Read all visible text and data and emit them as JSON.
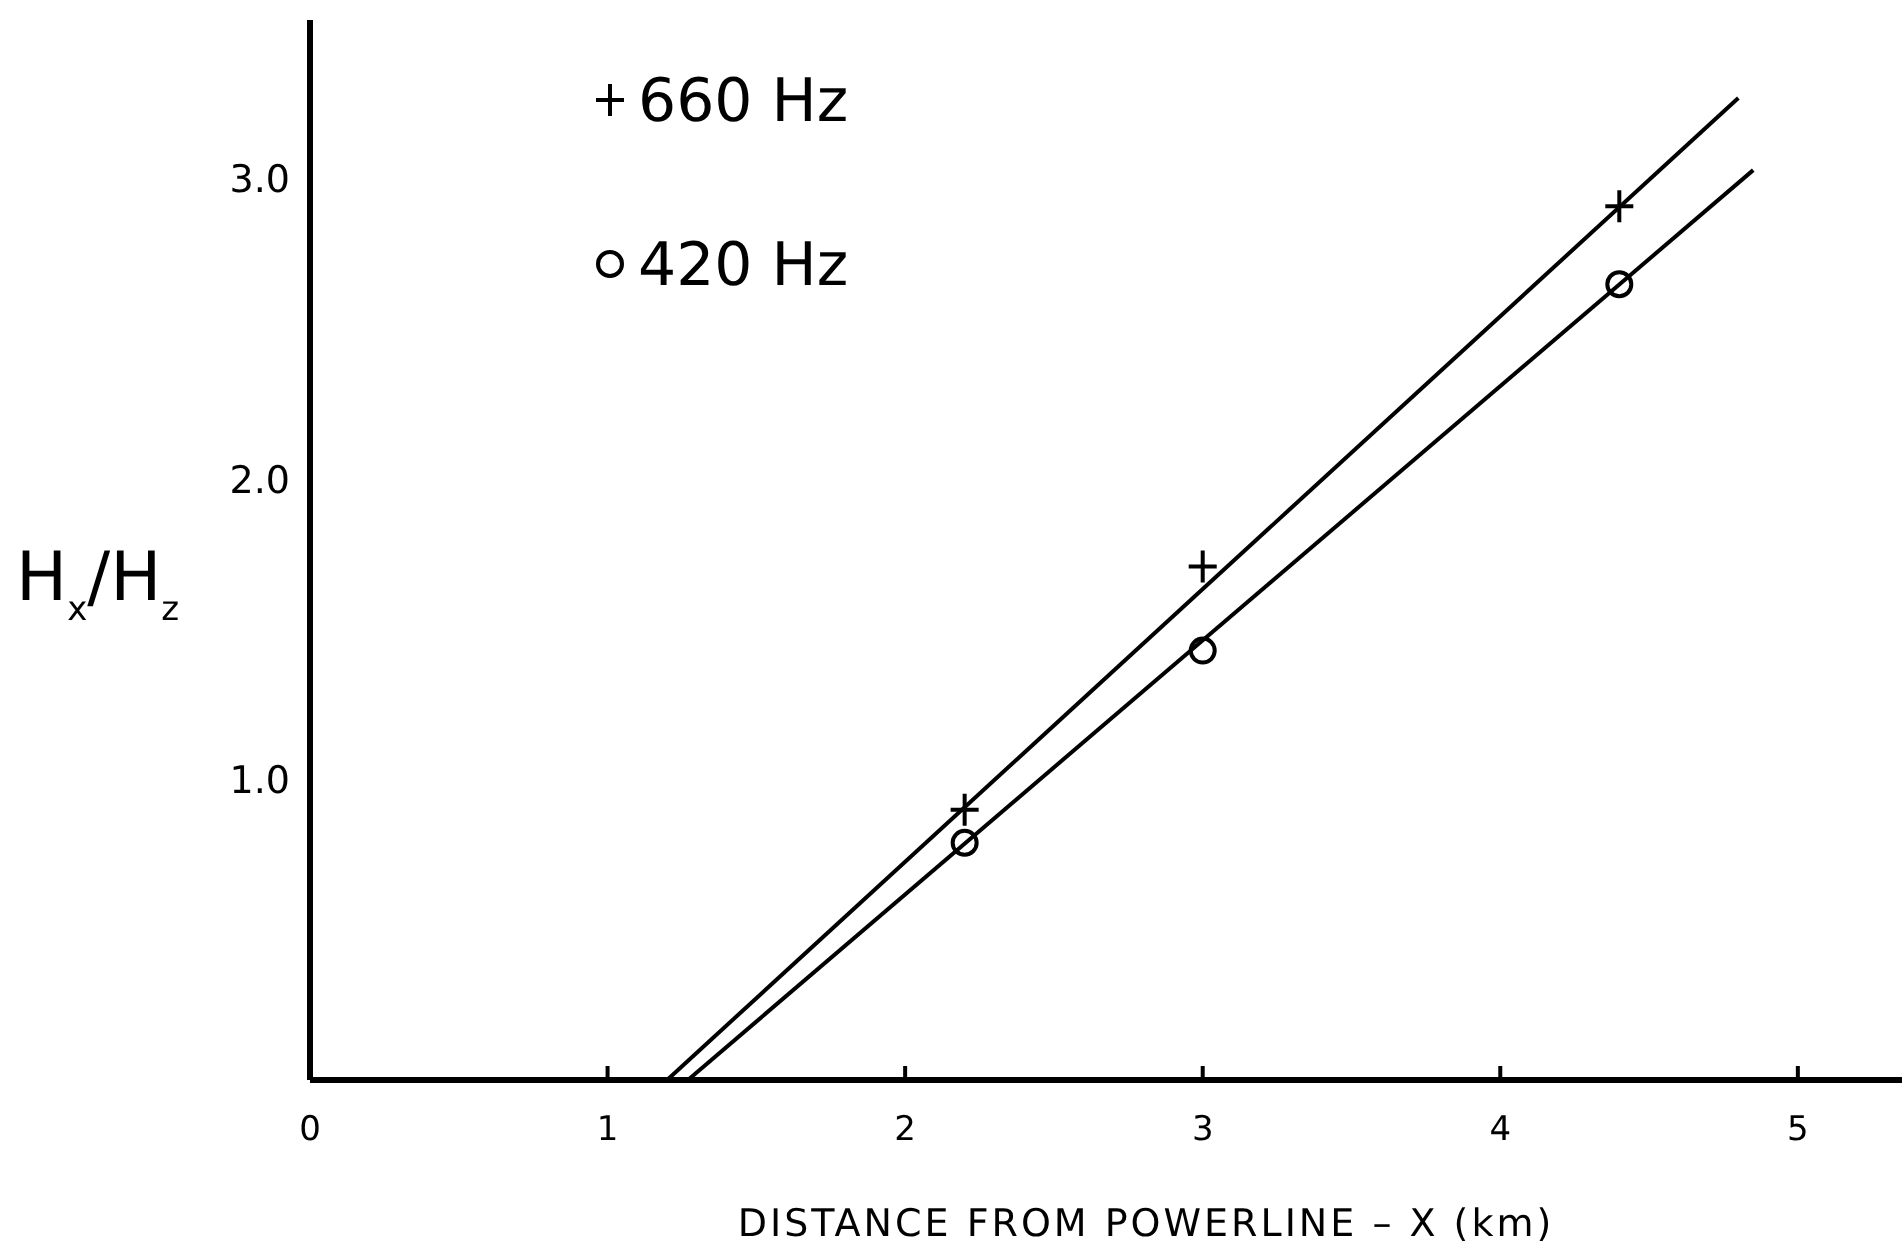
{
  "chart_data": {
    "type": "scatter",
    "xlabel": "DISTANCE  FROM  POWERLINE – X (km)",
    "ylabel": "H$_{x}$/H$_{z}$",
    "xlim": [
      0,
      5.35
    ],
    "ylim": [
      0,
      3.53
    ],
    "xticks": [
      0,
      1,
      2,
      3,
      4,
      5
    ],
    "yticks": [
      {
        "value": 1,
        "label": "1.0"
      },
      {
        "value": 2,
        "label": "2.0"
      },
      {
        "value": 3,
        "label": "3.0"
      }
    ],
    "legend": "top left",
    "grid": false,
    "series": [
      {
        "name": "660 Hz",
        "marker": "cross",
        "color": "#000000",
        "x": [
          2.2,
          3.0,
          4.4
        ],
        "values": [
          0.9,
          1.71,
          2.91
        ]
      },
      {
        "name": "420 Hz",
        "marker": "circle",
        "color": "#000000",
        "x": [
          2.2,
          3.0,
          4.4
        ],
        "values": [
          0.79,
          1.43,
          2.65
        ]
      },
      {
        "type": "line",
        "marker": "none",
        "color": "#000000",
        "x": [
          1.2,
          4.8
        ],
        "values": [
          0,
          3.27
        ]
      },
      {
        "type": "line",
        "marker": "none",
        "color": "#000000",
        "x": [
          1.27,
          4.85
        ],
        "values": [
          0,
          3.03
        ]
      }
    ]
  }
}
